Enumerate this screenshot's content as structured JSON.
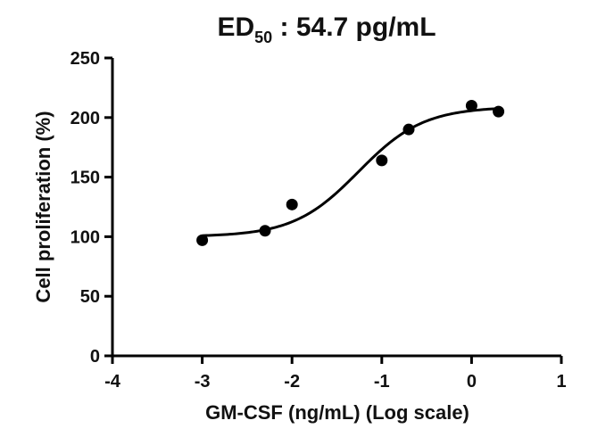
{
  "chart_data": {
    "type": "scatter",
    "title_main": "ED",
    "title_subscript": "50",
    "title_rest": " : 54.7 pg/mL",
    "xlabel": "GM-CSF (ng/mL) (Log scale)",
    "ylabel": "Cell proliferation (%)",
    "xlim": [
      -4,
      1
    ],
    "ylim": [
      0,
      250
    ],
    "x_ticks": [
      -4,
      -3,
      -2,
      -1,
      0,
      1
    ],
    "y_ticks": [
      0,
      50,
      100,
      150,
      200,
      250
    ],
    "grid": false,
    "series": [
      {
        "points": [
          {
            "x": -3.0,
            "y": 97
          },
          {
            "x": -2.3,
            "y": 105
          },
          {
            "x": -2.0,
            "y": 127
          },
          {
            "x": -1.0,
            "y": 164
          },
          {
            "x": -0.7,
            "y": 190
          },
          {
            "x": 0.0,
            "y": 210
          },
          {
            "x": 0.3,
            "y": 205
          }
        ],
        "fit": {
          "model": "4PL",
          "bottom": 100,
          "top": 209,
          "logEC50": -1.26,
          "hill": 1.2,
          "x_range": [
            -3.0,
            0.3
          ]
        },
        "color": "#000000"
      }
    ]
  }
}
